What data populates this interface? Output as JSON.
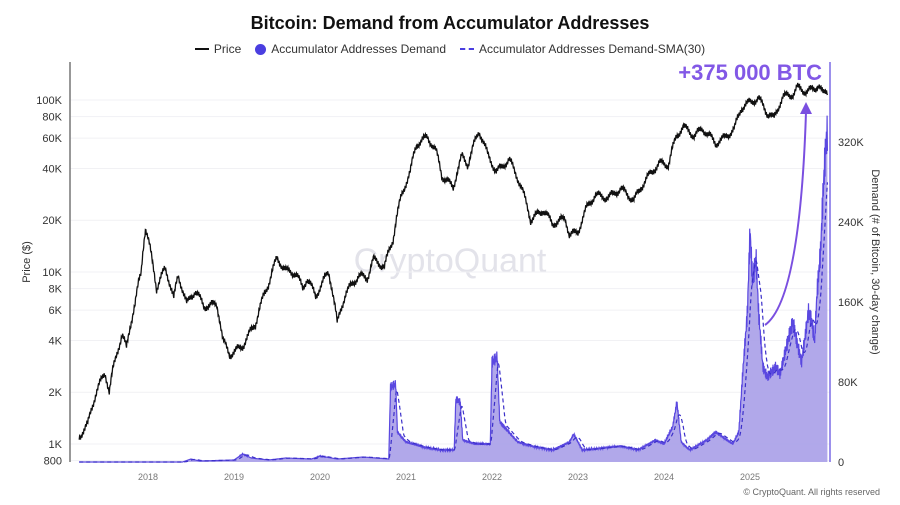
{
  "chart_data": {
    "type": "line",
    "title": "Bitcoin: Demand from Accumulator Addresses",
    "legend": [
      "Price",
      "Accumulator Addresses Demand",
      "Accumulator Addresses Demand-SMA(30)"
    ],
    "legend_placement": "top",
    "x_ticks": [
      "2018",
      "2019",
      "2020",
      "2021",
      "2022",
      "2023",
      "2024",
      "2025"
    ],
    "y_left": {
      "label": "Price ($)",
      "scale": "log",
      "range": [
        800,
        160000
      ],
      "ticks": [
        "800",
        "1K",
        "2K",
        "4K",
        "6K",
        "8K",
        "10K",
        "20K",
        "40K",
        "60K",
        "80K",
        "100K"
      ]
    },
    "y_right": {
      "label": "Demand (# of Bitcoin, 30-day change)",
      "range": [
        0,
        400000
      ],
      "ticks": [
        "0",
        "80K",
        "160K",
        "240K",
        "320K"
      ]
    },
    "series": [
      {
        "name": "Price",
        "color": "#111111",
        "axis": "left",
        "points": [
          [
            2017.2,
            1100
          ],
          [
            2017.3,
            1300
          ],
          [
            2017.4,
            2000
          ],
          [
            2017.5,
            2600
          ],
          [
            2017.55,
            2000
          ],
          [
            2017.6,
            2800
          ],
          [
            2017.7,
            4300
          ],
          [
            2017.75,
            3600
          ],
          [
            2017.85,
            6500
          ],
          [
            2017.92,
            10000
          ],
          [
            2017.97,
            18000
          ],
          [
            2018.05,
            11500
          ],
          [
            2018.1,
            8000
          ],
          [
            2018.2,
            10500
          ],
          [
            2018.3,
            7000
          ],
          [
            2018.35,
            9500
          ],
          [
            2018.45,
            6500
          ],
          [
            2018.55,
            7800
          ],
          [
            2018.65,
            6300
          ],
          [
            2018.8,
            6500
          ],
          [
            2018.87,
            4000
          ],
          [
            2018.95,
            3300
          ],
          [
            2019.1,
            3700
          ],
          [
            2019.25,
            5000
          ],
          [
            2019.4,
            8500
          ],
          [
            2019.5,
            12000
          ],
          [
            2019.6,
            10200
          ],
          [
            2019.72,
            9800
          ],
          [
            2019.8,
            8000
          ],
          [
            2019.85,
            9200
          ],
          [
            2019.95,
            7200
          ],
          [
            2020.1,
            10000
          ],
          [
            2020.2,
            5000
          ],
          [
            2020.3,
            7500
          ],
          [
            2020.45,
            9500
          ],
          [
            2020.55,
            9200
          ],
          [
            2020.62,
            11800
          ],
          [
            2020.75,
            10700
          ],
          [
            2020.85,
            15500
          ],
          [
            2020.95,
            28000
          ],
          [
            2021.05,
            38000
          ],
          [
            2021.12,
            55000
          ],
          [
            2021.25,
            61000
          ],
          [
            2021.35,
            50000
          ],
          [
            2021.42,
            36000
          ],
          [
            2021.55,
            31000
          ],
          [
            2021.65,
            47000
          ],
          [
            2021.72,
            42000
          ],
          [
            2021.85,
            66000
          ],
          [
            2021.95,
            48000
          ],
          [
            2022.05,
            38000
          ],
          [
            2022.2,
            45000
          ],
          [
            2022.35,
            30000
          ],
          [
            2022.45,
            20000
          ],
          [
            2022.6,
            23000
          ],
          [
            2022.7,
            19000
          ],
          [
            2022.85,
            20500
          ],
          [
            2022.9,
            16500
          ],
          [
            2023.0,
            17000
          ],
          [
            2023.1,
            23500
          ],
          [
            2023.2,
            28000
          ],
          [
            2023.35,
            27000
          ],
          [
            2023.5,
            30500
          ],
          [
            2023.65,
            26000
          ],
          [
            2023.8,
            35000
          ],
          [
            2023.95,
            43000
          ],
          [
            2024.05,
            42000
          ],
          [
            2024.15,
            62000
          ],
          [
            2024.22,
            70000
          ],
          [
            2024.35,
            62000
          ],
          [
            2024.45,
            68000
          ],
          [
            2024.6,
            56000
          ],
          [
            2024.7,
            60000
          ],
          [
            2024.82,
            68000
          ],
          [
            2024.9,
            90000
          ],
          [
            2025.0,
            97000
          ],
          [
            2025.1,
            102000
          ],
          [
            2025.2,
            84000
          ],
          [
            2025.28,
            78000
          ],
          [
            2025.38,
            104000
          ],
          [
            2025.5,
            108000
          ],
          [
            2025.55,
            118000
          ],
          [
            2025.65,
            112000
          ],
          [
            2025.75,
            116000
          ],
          [
            2025.8,
            123000
          ],
          [
            2025.85,
            108000
          ],
          [
            2025.9,
            112000
          ]
        ]
      },
      {
        "name": "Accumulator Addresses Demand",
        "color": "#7b6be6",
        "axis": "right",
        "points": [
          [
            2017.2,
            0
          ],
          [
            2018.4,
            0
          ],
          [
            2018.5,
            3
          ],
          [
            2018.6,
            1
          ],
          [
            2019.0,
            2
          ],
          [
            2019.1,
            8
          ],
          [
            2019.2,
            4
          ],
          [
            2019.4,
            2
          ],
          [
            2019.6,
            4
          ],
          [
            2019.9,
            3
          ],
          [
            2020.0,
            6
          ],
          [
            2020.2,
            3
          ],
          [
            2020.5,
            5
          ],
          [
            2020.8,
            3
          ],
          [
            2020.82,
            75
          ],
          [
            2020.88,
            78
          ],
          [
            2020.9,
            30
          ],
          [
            2021.0,
            20
          ],
          [
            2021.2,
            15
          ],
          [
            2021.4,
            12
          ],
          [
            2021.56,
            12
          ],
          [
            2021.58,
            63
          ],
          [
            2021.63,
            60
          ],
          [
            2021.66,
            22
          ],
          [
            2021.8,
            18
          ],
          [
            2021.98,
            18
          ],
          [
            2022.0,
            100
          ],
          [
            2022.06,
            105
          ],
          [
            2022.09,
            40
          ],
          [
            2022.3,
            20
          ],
          [
            2022.5,
            15
          ],
          [
            2022.7,
            12
          ],
          [
            2022.9,
            20
          ],
          [
            2022.95,
            28
          ],
          [
            2023.05,
            12
          ],
          [
            2023.3,
            14
          ],
          [
            2023.5,
            16
          ],
          [
            2023.7,
            12
          ],
          [
            2023.9,
            22
          ],
          [
            2024.0,
            18
          ],
          [
            2024.1,
            35
          ],
          [
            2024.15,
            60
          ],
          [
            2024.2,
            20
          ],
          [
            2024.3,
            12
          ],
          [
            2024.5,
            22
          ],
          [
            2024.6,
            30
          ],
          [
            2024.7,
            24
          ],
          [
            2024.8,
            18
          ],
          [
            2024.87,
            30
          ],
          [
            2024.92,
            95
          ],
          [
            2024.97,
            150
          ],
          [
            2025.0,
            232
          ],
          [
            2025.03,
            180
          ],
          [
            2025.07,
            205
          ],
          [
            2025.1,
            150
          ],
          [
            2025.15,
            95
          ],
          [
            2025.2,
            85
          ],
          [
            2025.3,
            95
          ],
          [
            2025.35,
            88
          ],
          [
            2025.45,
            125
          ],
          [
            2025.5,
            140
          ],
          [
            2025.55,
            118
          ],
          [
            2025.6,
            100
          ],
          [
            2025.68,
            150
          ],
          [
            2025.72,
            140
          ],
          [
            2025.75,
            120
          ],
          [
            2025.78,
            170
          ],
          [
            2025.82,
            210
          ],
          [
            2025.85,
            270
          ],
          [
            2025.88,
            315
          ],
          [
            2025.9,
            330
          ]
        ]
      }
    ],
    "annotation": "+375 000 BTC",
    "watermark": "CryptoQuant",
    "grid": true
  },
  "footer": {
    "copyright": "© CryptoQuant. All rights reserved"
  }
}
